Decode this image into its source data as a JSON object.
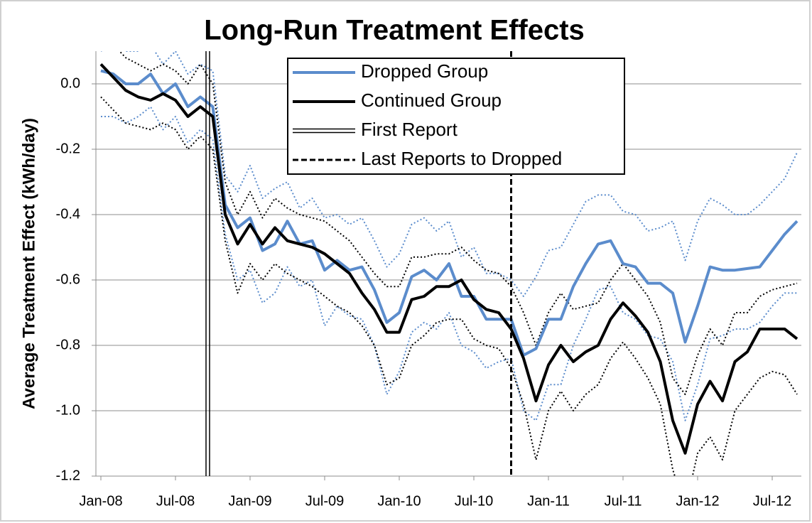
{
  "chart_data": {
    "type": "line",
    "title": "Long-Run Treatment Effects",
    "y_label": "Average Treatment Effect (kWh/day)",
    "categories": [
      "Jan-08",
      null,
      null,
      null,
      null,
      null,
      "Jul-08",
      null,
      null,
      null,
      null,
      null,
      "Jan-09",
      null,
      null,
      null,
      null,
      null,
      "Jul-09",
      null,
      null,
      null,
      null,
      null,
      "Jan-10",
      null,
      null,
      null,
      null,
      null,
      "Jul-10",
      null,
      null,
      null,
      null,
      null,
      "Jan-11",
      null,
      null,
      null,
      null,
      null,
      "Jul-11",
      null,
      null,
      null,
      null,
      null,
      "Jan-12",
      null,
      null,
      null,
      null,
      null,
      "Jul-12",
      null,
      null
    ],
    "series": [
      {
        "color": "#5b8ccc",
        "style": "dotted",
        "values": [
          0.1,
          0.12,
          0.1,
          0.1,
          0.12,
          0.06,
          0.1,
          0.03,
          0.06,
          0.04,
          -0.28,
          -0.33,
          -0.25,
          -0.35,
          -0.32,
          -0.3,
          -0.38,
          -0.35,
          -0.41,
          -0.4,
          -0.43,
          -0.41,
          -0.48,
          -0.56,
          -0.52,
          -0.43,
          -0.41,
          -0.45,
          -0.42,
          -0.53,
          -0.5,
          -0.58,
          -0.58,
          -0.6,
          -0.65,
          -0.59,
          -0.51,
          -0.5,
          -0.43,
          -0.36,
          -0.34,
          -0.34,
          -0.39,
          -0.4,
          -0.45,
          -0.44,
          -0.42,
          -0.54,
          -0.42,
          -0.35,
          -0.37,
          -0.4,
          -0.4,
          -0.37,
          -0.33,
          -0.29,
          -0.21
        ]
      },
      {
        "color": "#5b8ccc",
        "style": "dotted",
        "values": [
          -0.1,
          -0.1,
          -0.12,
          -0.1,
          -0.07,
          -0.14,
          -0.1,
          -0.18,
          -0.14,
          -0.17,
          -0.46,
          -0.6,
          -0.57,
          -0.67,
          -0.64,
          -0.56,
          -0.62,
          -0.6,
          -0.74,
          -0.68,
          -0.71,
          -0.72,
          -0.8,
          -0.95,
          -0.88,
          -0.76,
          -0.73,
          -0.75,
          -0.7,
          -0.8,
          -0.82,
          -0.87,
          -0.85,
          -0.84,
          -1.0,
          -1.03,
          -0.92,
          -0.92,
          -0.8,
          -0.72,
          -0.63,
          -0.62,
          -0.7,
          -0.72,
          -0.77,
          -0.78,
          -0.85,
          -1.03,
          -0.92,
          -0.78,
          -0.77,
          -0.75,
          -0.75,
          -0.73,
          -0.68,
          -0.64,
          -0.64
        ]
      },
      {
        "color": "#000000",
        "style": "dotted",
        "values": [
          0.16,
          0.12,
          0.08,
          0.06,
          0.04,
          0.06,
          0.04,
          0.0,
          0.06,
          0.0,
          -0.3,
          -0.4,
          -0.33,
          -0.41,
          -0.35,
          -0.38,
          -0.4,
          -0.41,
          -0.42,
          -0.45,
          -0.48,
          -0.53,
          -0.58,
          -0.62,
          -0.62,
          -0.53,
          -0.53,
          -0.52,
          -0.52,
          -0.5,
          -0.54,
          -0.57,
          -0.58,
          -0.62,
          -0.7,
          -0.8,
          -0.7,
          -0.64,
          -0.69,
          -0.68,
          -0.67,
          -0.6,
          -0.55,
          -0.6,
          -0.65,
          -0.73,
          -0.9,
          -0.95,
          -0.83,
          -0.75,
          -0.8,
          -0.7,
          -0.7,
          -0.65,
          -0.63,
          -0.62,
          -0.61
        ]
      },
      {
        "color": "#000000",
        "style": "dotted",
        "values": [
          -0.04,
          -0.08,
          -0.12,
          -0.13,
          -0.14,
          -0.12,
          -0.14,
          -0.2,
          -0.16,
          -0.2,
          -0.48,
          -0.64,
          -0.55,
          -0.6,
          -0.55,
          -0.58,
          -0.6,
          -0.62,
          -0.65,
          -0.68,
          -0.7,
          -0.74,
          -0.8,
          -0.92,
          -0.9,
          -0.8,
          -0.77,
          -0.73,
          -0.72,
          -0.72,
          -0.78,
          -0.8,
          -0.81,
          -0.87,
          -0.98,
          -1.15,
          -1.0,
          -0.94,
          -1.0,
          -0.95,
          -0.92,
          -0.84,
          -0.79,
          -0.84,
          -0.9,
          -0.98,
          -1.18,
          -1.3,
          -1.13,
          -1.08,
          -1.15,
          -1.0,
          -0.95,
          -0.9,
          -0.88,
          -0.89,
          -0.95
        ]
      },
      {
        "name": "Dropped Group",
        "color": "#5b8ccc",
        "style": "solid",
        "values": [
          0.04,
          0.03,
          0.0,
          0.0,
          0.03,
          -0.03,
          0.0,
          -0.07,
          -0.04,
          -0.07,
          -0.37,
          -0.44,
          -0.41,
          -0.51,
          -0.49,
          -0.42,
          -0.49,
          -0.48,
          -0.57,
          -0.54,
          -0.57,
          -0.56,
          -0.63,
          -0.73,
          -0.7,
          -0.59,
          -0.57,
          -0.6,
          -0.55,
          -0.65,
          -0.65,
          -0.72,
          -0.72,
          -0.72,
          -0.83,
          -0.81,
          -0.72,
          -0.72,
          -0.62,
          -0.55,
          -0.49,
          -0.48,
          -0.55,
          -0.56,
          -0.61,
          -0.61,
          -0.64,
          -0.79,
          -0.68,
          -0.56,
          -0.57,
          -0.57,
          -0.565,
          -0.56,
          -0.51,
          -0.46,
          -0.42
        ]
      },
      {
        "name": "Continued Group",
        "color": "#000000",
        "style": "solid",
        "values": [
          0.06,
          0.02,
          -0.02,
          -0.04,
          -0.05,
          -0.03,
          -0.05,
          -0.1,
          -0.07,
          -0.1,
          -0.4,
          -0.49,
          -0.43,
          -0.49,
          -0.44,
          -0.48,
          -0.49,
          -0.5,
          -0.52,
          -0.55,
          -0.58,
          -0.64,
          -0.69,
          -0.76,
          -0.76,
          -0.66,
          -0.65,
          -0.62,
          -0.62,
          -0.6,
          -0.66,
          -0.69,
          -0.7,
          -0.75,
          -0.84,
          -0.97,
          -0.86,
          -0.8,
          -0.85,
          -0.82,
          -0.8,
          -0.72,
          -0.67,
          -0.71,
          -0.76,
          -0.85,
          -1.03,
          -1.13,
          -0.98,
          -0.91,
          -0.97,
          -0.85,
          -0.82,
          -0.75,
          -0.75,
          -0.75,
          -0.78
        ]
      }
    ],
    "vlines": [
      {
        "name": "First Report",
        "style": "double",
        "position": 8.6
      },
      {
        "name": "Last Reports to Dropped",
        "style": "dashed",
        "position": 33.0
      }
    ],
    "ylim": [
      -1.2,
      0.1
    ],
    "yticks": [
      {
        "value": 0,
        "label": "0.0"
      },
      -0.2,
      -0.4,
      -0.6,
      -0.8,
      {
        "value": -1,
        "label": "-1.0"
      },
      -1.2
    ],
    "grid": true
  }
}
